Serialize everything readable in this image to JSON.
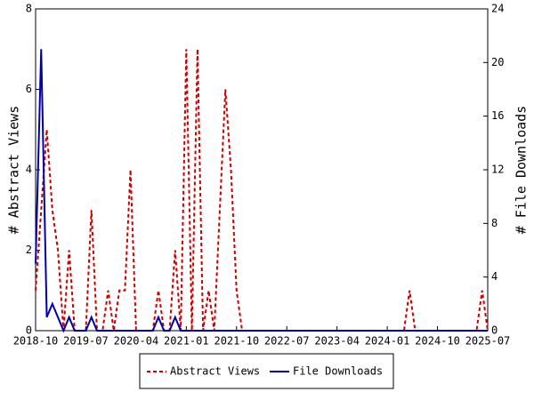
{
  "chart_data": {
    "type": "line",
    "x": [
      "2018-10",
      "2018-11",
      "2018-12",
      "2019-01",
      "2019-02",
      "2019-03",
      "2019-04",
      "2019-05",
      "2019-06",
      "2019-07",
      "2019-08",
      "2019-09",
      "2019-10",
      "2019-11",
      "2019-12",
      "2020-01",
      "2020-02",
      "2020-03",
      "2020-04",
      "2020-05",
      "2020-06",
      "2020-07",
      "2020-08",
      "2020-09",
      "2020-10",
      "2020-11",
      "2020-12",
      "2021-01",
      "2021-02",
      "2021-03",
      "2021-04",
      "2021-05",
      "2021-06",
      "2021-07",
      "2021-08",
      "2021-09",
      "2021-10",
      "2021-11",
      "2021-12",
      "2022-01",
      "2022-02",
      "2022-03",
      "2022-04",
      "2022-05",
      "2022-06",
      "2022-07",
      "2022-08",
      "2022-09",
      "2022-10",
      "2022-11",
      "2022-12",
      "2023-01",
      "2023-02",
      "2023-03",
      "2023-04",
      "2023-05",
      "2023-06",
      "2023-07",
      "2023-08",
      "2023-09",
      "2023-10",
      "2023-11",
      "2023-12",
      "2024-01",
      "2024-02",
      "2024-03",
      "2024-04",
      "2024-05",
      "2024-06",
      "2024-07",
      "2024-08",
      "2024-09",
      "2024-10",
      "2024-11",
      "2024-12",
      "2025-01",
      "2025-02",
      "2025-03",
      "2025-04",
      "2025-05",
      "2025-06",
      "2025-07"
    ],
    "xticks": [
      "2018-10",
      "2019-07",
      "2020-04",
      "2021-01",
      "2021-10",
      "2022-07",
      "2023-04",
      "2024-01",
      "2024-10",
      "2025-07"
    ],
    "ylabel": "# Abstract Views",
    "y2label": "# File Downloads",
    "ylim": [
      0,
      8
    ],
    "yticks": [
      0,
      2,
      4,
      6,
      8
    ],
    "y2lim": [
      0,
      24
    ],
    "y2ticks": [
      0,
      4,
      8,
      12,
      16,
      20,
      24
    ],
    "series": [
      {
        "name": "Abstract Views",
        "color": "#cc0000",
        "dashed": true,
        "values": [
          1,
          3,
          5,
          3,
          2,
          0,
          2,
          0,
          0,
          0,
          3,
          0,
          0,
          1,
          0,
          1,
          1,
          4,
          0,
          0,
          0,
          0,
          1,
          0,
          0,
          2,
          0,
          7,
          0,
          7,
          0,
          1,
          0,
          3,
          6,
          4,
          1,
          0,
          0,
          0,
          0,
          0,
          0,
          0,
          0,
          0,
          0,
          0,
          0,
          0,
          0,
          0,
          0,
          0,
          0,
          0,
          0,
          0,
          0,
          0,
          0,
          0,
          0,
          0,
          0,
          0,
          0,
          1,
          0,
          0,
          0,
          0,
          0,
          0,
          0,
          0,
          0,
          0,
          0,
          0,
          1,
          0
        ]
      },
      {
        "name": "File Downloads",
        "color": "#0000aa",
        "axis": "y2",
        "dashed": false,
        "values": [
          5,
          21,
          1,
          2,
          1,
          0,
          1,
          0,
          0,
          0,
          1,
          0,
          0,
          0,
          0,
          0,
          0,
          0,
          0,
          0,
          0,
          0,
          1,
          0,
          0,
          1,
          0,
          0,
          0,
          0,
          0,
          0,
          0,
          0,
          0,
          0,
          0,
          0,
          0,
          0,
          0,
          0,
          0,
          0,
          0,
          0,
          0,
          0,
          0,
          0,
          0,
          0,
          0,
          0,
          0,
          0,
          0,
          0,
          0,
          0,
          0,
          0,
          0,
          0,
          0,
          0,
          0,
          0,
          0,
          0,
          0,
          0,
          0,
          0,
          0,
          0,
          0,
          0,
          0,
          0,
          0,
          0
        ]
      }
    ]
  }
}
